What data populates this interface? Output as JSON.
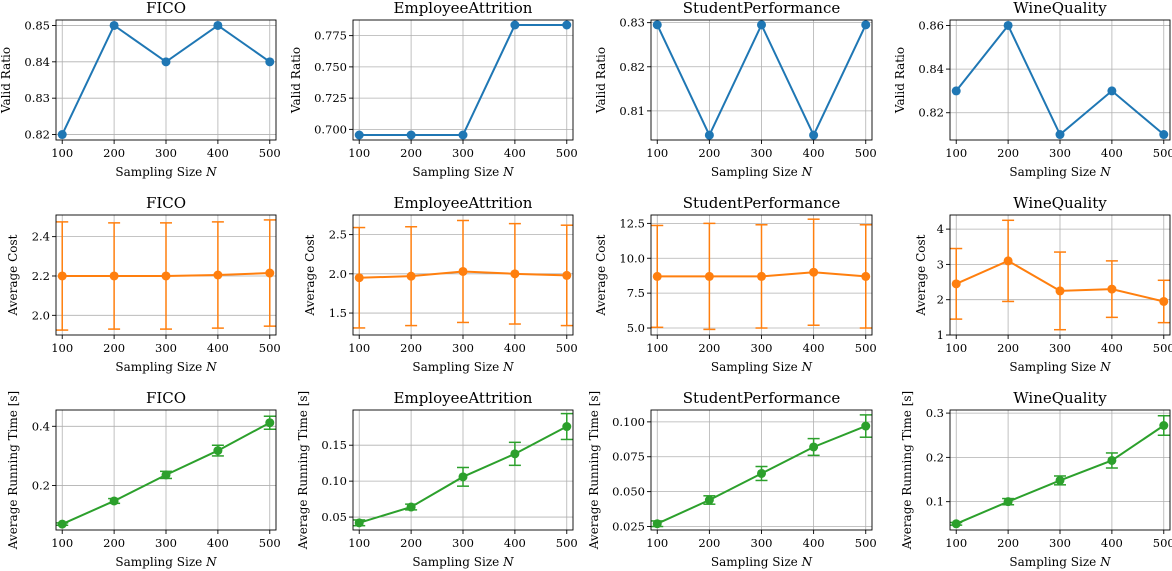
{
  "colors": {
    "row1": "#1f77b4",
    "row2": "#ff7f0e",
    "row3": "#2ca02c"
  },
  "chart_data": [
    {
      "type": "line",
      "title": "FICO",
      "xlabel": "Sampling Size N",
      "ylabel": "Valid Ratio",
      "x": [
        100,
        200,
        300,
        400,
        500
      ],
      "values": [
        0.82,
        0.85,
        0.84,
        0.85,
        0.84
      ],
      "xlim": [
        88,
        512
      ],
      "ylim": [
        0.8185,
        0.8515
      ],
      "yticks": [
        0.82,
        0.83,
        0.84,
        0.85
      ],
      "ytick_labels": [
        "0.82",
        "0.83",
        "0.84",
        "0.85"
      ],
      "grid": true
    },
    {
      "type": "line",
      "title": "EmployeeAttrition",
      "xlabel": "Sampling Size N",
      "ylabel": "Valid Ratio",
      "x": [
        100,
        200,
        300,
        400,
        500
      ],
      "values": [
        0.6955,
        0.6955,
        0.6955,
        0.7835,
        0.7835
      ],
      "xlim": [
        88,
        512
      ],
      "ylim": [
        0.6915,
        0.7875
      ],
      "yticks": [
        0.7,
        0.725,
        0.75,
        0.775
      ],
      "ytick_labels": [
        "0.700",
        "0.725",
        "0.750",
        "0.775"
      ],
      "grid": true
    },
    {
      "type": "line",
      "title": "StudentPerformance",
      "xlabel": "Sampling Size N",
      "ylabel": "Valid Ratio",
      "x": [
        100,
        200,
        300,
        400,
        500
      ],
      "values": [
        0.8295,
        0.8045,
        0.8295,
        0.8045,
        0.8295
      ],
      "xlim": [
        88,
        512
      ],
      "ylim": [
        0.8034,
        0.8306
      ],
      "yticks": [
        0.81,
        0.82,
        0.83
      ],
      "ytick_labels": [
        "0.81",
        "0.82",
        "0.83"
      ],
      "grid": true
    },
    {
      "type": "line",
      "title": "WineQuality",
      "xlabel": "Sampling Size N",
      "ylabel": "Valid Ratio",
      "x": [
        100,
        200,
        300,
        400,
        500
      ],
      "values": [
        0.83,
        0.86,
        0.81,
        0.83,
        0.81
      ],
      "xlim": [
        88,
        512
      ],
      "ylim": [
        0.8075,
        0.8625
      ],
      "yticks": [
        0.82,
        0.84,
        0.86
      ],
      "ytick_labels": [
        "0.82",
        "0.84",
        "0.86"
      ],
      "grid": true
    },
    {
      "type": "line",
      "title": "FICO",
      "xlabel": "Sampling Size N",
      "ylabel": "Average Cost",
      "x": [
        100,
        200,
        300,
        400,
        500
      ],
      "values": [
        2.2,
        2.2,
        2.2,
        2.205,
        2.215
      ],
      "errors": [
        0.275,
        0.27,
        0.27,
        0.27,
        0.27
      ],
      "xlim": [
        88,
        512
      ],
      "ylim": [
        1.9,
        2.51
      ],
      "yticks": [
        2.0,
        2.2,
        2.4
      ],
      "ytick_labels": [
        "2.0",
        "2.2",
        "2.4"
      ],
      "grid": true
    },
    {
      "type": "line",
      "title": "EmployeeAttrition",
      "xlabel": "Sampling Size N",
      "ylabel": "Average Cost",
      "x": [
        100,
        200,
        300,
        400,
        500
      ],
      "values": [
        1.95,
        1.97,
        2.03,
        2.0,
        1.98
      ],
      "errors": [
        0.64,
        0.63,
        0.65,
        0.64,
        0.64
      ],
      "xlim": [
        88,
        512
      ],
      "ylim": [
        1.22,
        2.75
      ],
      "yticks": [
        1.5,
        2.0,
        2.5
      ],
      "ytick_labels": [
        "1.5",
        "2.0",
        "2.5"
      ],
      "grid": true
    },
    {
      "type": "line",
      "title": "StudentPerformance",
      "xlabel": "Sampling Size N",
      "ylabel": "Average Cost",
      "x": [
        100,
        200,
        300,
        400,
        500
      ],
      "values": [
        8.7,
        8.7,
        8.7,
        9.0,
        8.7
      ],
      "errors": [
        3.65,
        3.8,
        3.7,
        3.8,
        3.7
      ],
      "xlim": [
        88,
        512
      ],
      "ylim": [
        4.5,
        13.1
      ],
      "yticks": [
        5.0,
        7.5,
        10.0,
        12.5
      ],
      "ytick_labels": [
        "5.0",
        "7.5",
        "10.0",
        "12.5"
      ],
      "grid": true
    },
    {
      "type": "line",
      "title": "WineQuality",
      "xlabel": "Sampling Size N",
      "ylabel": "Average Cost",
      "x": [
        100,
        200,
        300,
        400,
        500
      ],
      "values": [
        2.45,
        3.1,
        2.25,
        2.3,
        1.95
      ],
      "errors": [
        1.0,
        1.15,
        1.1,
        0.8,
        0.6
      ],
      "xlim": [
        88,
        512
      ],
      "ylim": [
        1.0,
        4.4
      ],
      "yticks": [
        1,
        2,
        3,
        4
      ],
      "ytick_labels": [
        "1",
        "2",
        "3",
        "4"
      ],
      "grid": true
    },
    {
      "type": "line",
      "title": "FICO",
      "xlabel": "Sampling Size N",
      "ylabel": "Average Running Time [s]",
      "x": [
        100,
        200,
        300,
        400,
        500
      ],
      "values": [
        0.07,
        0.148,
        0.236,
        0.318,
        0.412
      ],
      "errors": [
        0.004,
        0.008,
        0.012,
        0.018,
        0.022
      ],
      "xlim": [
        88,
        512
      ],
      "ylim": [
        0.05,
        0.455
      ],
      "yticks": [
        0.2,
        0.4
      ],
      "ytick_labels": [
        "0.2",
        "0.4"
      ],
      "grid": true
    },
    {
      "type": "line",
      "title": "EmployeeAttrition",
      "xlabel": "Sampling Size N",
      "ylabel": "Average Running Time [s]",
      "x": [
        100,
        200,
        300,
        400,
        500
      ],
      "values": [
        0.042,
        0.064,
        0.106,
        0.138,
        0.176
      ],
      "errors": [
        0.004,
        0.004,
        0.013,
        0.016,
        0.018
      ],
      "xlim": [
        88,
        512
      ],
      "ylim": [
        0.032,
        0.199
      ],
      "yticks": [
        0.05,
        0.1,
        0.15
      ],
      "ytick_labels": [
        "0.05",
        "0.10",
        "0.15"
      ],
      "grid": true
    },
    {
      "type": "line",
      "title": "StudentPerformance",
      "xlabel": "Sampling Size N",
      "ylabel": "Average Running Time [s]",
      "x": [
        100,
        200,
        300,
        400,
        500
      ],
      "values": [
        0.027,
        0.044,
        0.063,
        0.082,
        0.097
      ],
      "errors": [
        0.002,
        0.003,
        0.005,
        0.006,
        0.008
      ],
      "xlim": [
        88,
        512
      ],
      "ylim": [
        0.0225,
        0.1085
      ],
      "yticks": [
        0.025,
        0.05,
        0.075,
        0.1
      ],
      "ytick_labels": [
        "0.025",
        "0.050",
        "0.075",
        "0.100"
      ],
      "grid": true
    },
    {
      "type": "line",
      "title": "WineQuality",
      "xlabel": "Sampling Size N",
      "ylabel": "Average Running Time [s]",
      "x": [
        100,
        200,
        300,
        400,
        500
      ],
      "values": [
        0.05,
        0.1,
        0.148,
        0.193,
        0.272
      ],
      "errors": [
        0.003,
        0.007,
        0.01,
        0.017,
        0.022
      ],
      "xlim": [
        88,
        512
      ],
      "ylim": [
        0.036,
        0.307
      ],
      "yticks": [
        0.1,
        0.2,
        0.3
      ],
      "ytick_labels": [
        "0.1",
        "0.2",
        "0.3"
      ],
      "grid": true
    }
  ]
}
